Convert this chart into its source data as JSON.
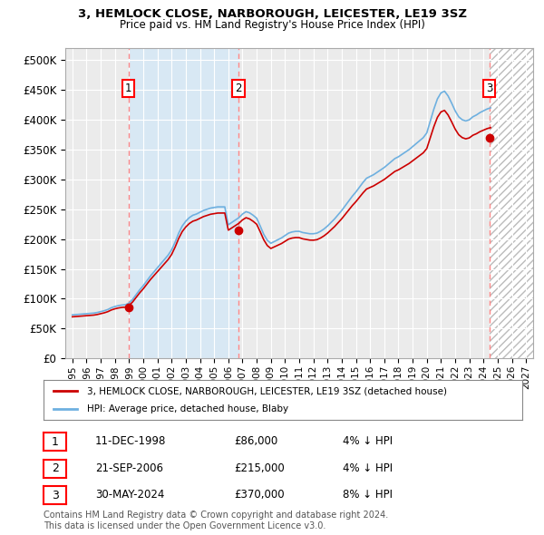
{
  "title": "3, HEMLOCK CLOSE, NARBOROUGH, LEICESTER, LE19 3SZ",
  "subtitle": "Price paid vs. HM Land Registry's House Price Index (HPI)",
  "legend_house": "3, HEMLOCK CLOSE, NARBOROUGH, LEICESTER, LE19 3SZ (detached house)",
  "legend_hpi": "HPI: Average price, detached house, Blaby",
  "transactions": [
    {
      "num": 1,
      "date": "11-DEC-1998",
      "price": 86000,
      "hpi_pct": "4% ↓ HPI",
      "year": 1998.95
    },
    {
      "num": 2,
      "date": "21-SEP-2006",
      "price": 215000,
      "hpi_pct": "4% ↓ HPI",
      "year": 2006.72
    },
    {
      "num": 3,
      "date": "30-MAY-2024",
      "price": 370000,
      "hpi_pct": "8% ↓ HPI",
      "year": 2024.41
    }
  ],
  "footnote1": "Contains HM Land Registry data © Crown copyright and database right 2024.",
  "footnote2": "This data is licensed under the Open Government Licence v3.0.",
  "ylim": [
    0,
    520000
  ],
  "yticks": [
    0,
    50000,
    100000,
    150000,
    200000,
    250000,
    300000,
    350000,
    400000,
    450000,
    500000
  ],
  "xlim": [
    1994.5,
    2027.5
  ],
  "xtick_years": [
    1995,
    1996,
    1997,
    1998,
    1999,
    2000,
    2001,
    2002,
    2003,
    2004,
    2005,
    2006,
    2007,
    2008,
    2009,
    2010,
    2011,
    2012,
    2013,
    2014,
    2015,
    2016,
    2017,
    2018,
    2019,
    2020,
    2021,
    2022,
    2023,
    2024,
    2025,
    2026,
    2027
  ],
  "hpi_color": "#6EB0E0",
  "price_color": "#CC0000",
  "vline_color": "#FF8888",
  "shade_color": "#D8E8F4",
  "background_color": "#EBEBEB",
  "grid_color": "#FFFFFF"
}
